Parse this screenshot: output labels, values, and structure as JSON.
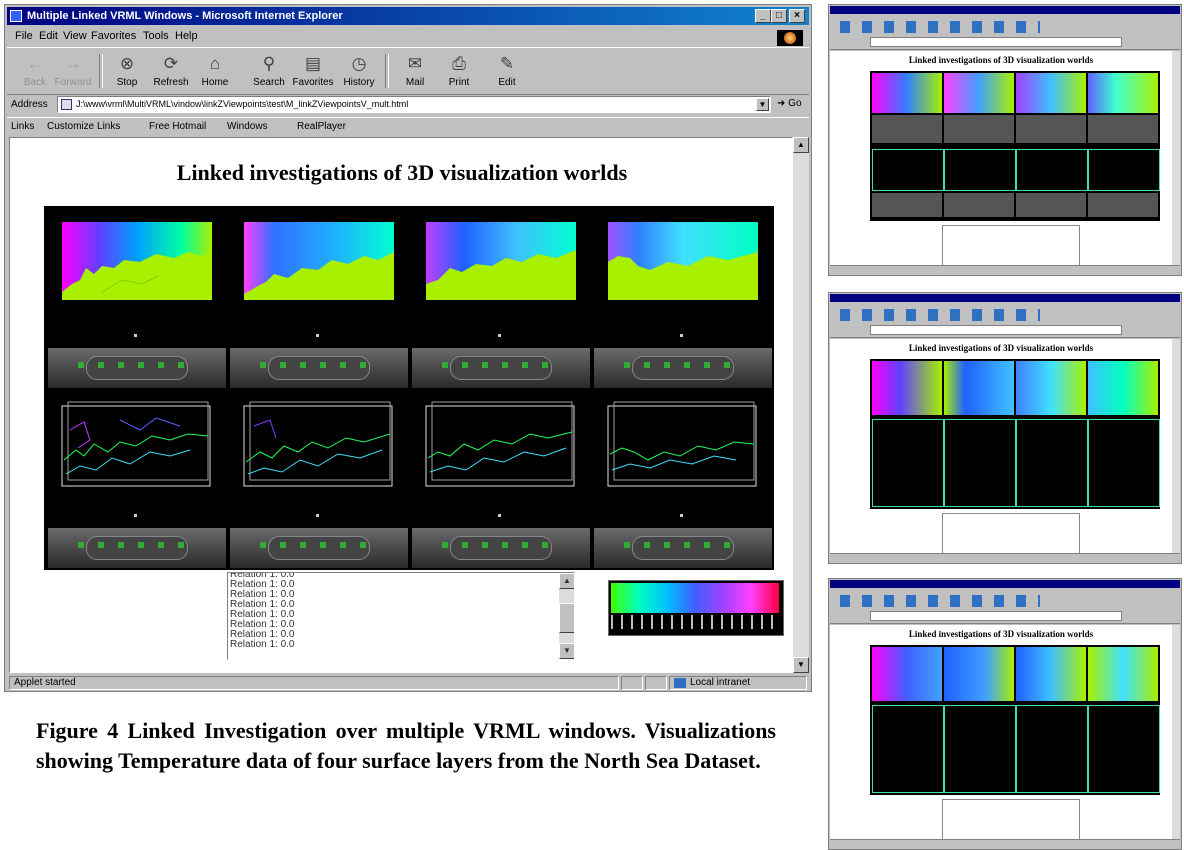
{
  "window": {
    "title": "Multiple Linked VRML Windows - Microsoft Internet Explorer",
    "controls": [
      "_",
      "□",
      "×"
    ]
  },
  "menu": [
    "File",
    "Edit",
    "View",
    "Favorites",
    "Tools",
    "Help"
  ],
  "toolbar": [
    {
      "label": "Back",
      "icon": "back-arrow-icon",
      "glyph": "←",
      "enabled": false
    },
    {
      "label": "Forward",
      "icon": "forward-arrow-icon",
      "glyph": "→",
      "enabled": false
    },
    {
      "label": "Stop",
      "icon": "stop-icon",
      "glyph": "⊗",
      "enabled": true
    },
    {
      "label": "Refresh",
      "icon": "refresh-icon",
      "glyph": "⟳",
      "enabled": true
    },
    {
      "label": "Home",
      "icon": "home-icon",
      "glyph": "⌂",
      "enabled": true
    },
    {
      "label": "Search",
      "icon": "search-icon",
      "glyph": "⚲",
      "enabled": true
    },
    {
      "label": "Favorites",
      "icon": "favorites-icon",
      "glyph": "▤",
      "enabled": true
    },
    {
      "label": "History",
      "icon": "history-icon",
      "glyph": "◷",
      "enabled": true
    },
    {
      "label": "Mail",
      "icon": "mail-icon",
      "glyph": "✉",
      "enabled": true
    },
    {
      "label": "Print",
      "icon": "print-icon",
      "glyph": "⎙",
      "enabled": true
    },
    {
      "label": "Edit",
      "icon": "edit-icon",
      "glyph": "✎",
      "enabled": true
    }
  ],
  "address": {
    "label": "Address",
    "url": "J:\\www\\vrml\\MultiVRML\\vindow\\linkZViewpoints\\test\\M_linkZViewpointsV_mult.html",
    "go": "Go"
  },
  "links": {
    "label": "Links",
    "items": [
      "Customize Links",
      "Free Hotmail",
      "Windows",
      "RealPlayer"
    ]
  },
  "page": {
    "title": "Linked investigations of 3D visualization worlds"
  },
  "applet": {
    "lines": [
      "Relation 1:  0.0",
      "Relation 1:  0.0",
      "Relation 1:  0.0",
      "Relation 1:  0.0",
      "Relation 1:  0.0",
      "Relation 1:  0.0",
      "Relation 1:  0.0",
      "Relation 1:  0.0"
    ]
  },
  "status": {
    "left": "Applet started",
    "zone": "Local intranet"
  },
  "caption": "Figure 4  Linked Investigation over multiple VRML windows. Visualizations showing Temperature data of four surface layers from the North Sea Dataset.",
  "thumbnails": {
    "title": "Linked investigations of 3D visualization worlds",
    "count": 3
  },
  "colors": {
    "titlebar": "#000080",
    "chrome": "#c0c0c0",
    "map_low": "#a8f000",
    "map_high": "#ff00ff"
  }
}
